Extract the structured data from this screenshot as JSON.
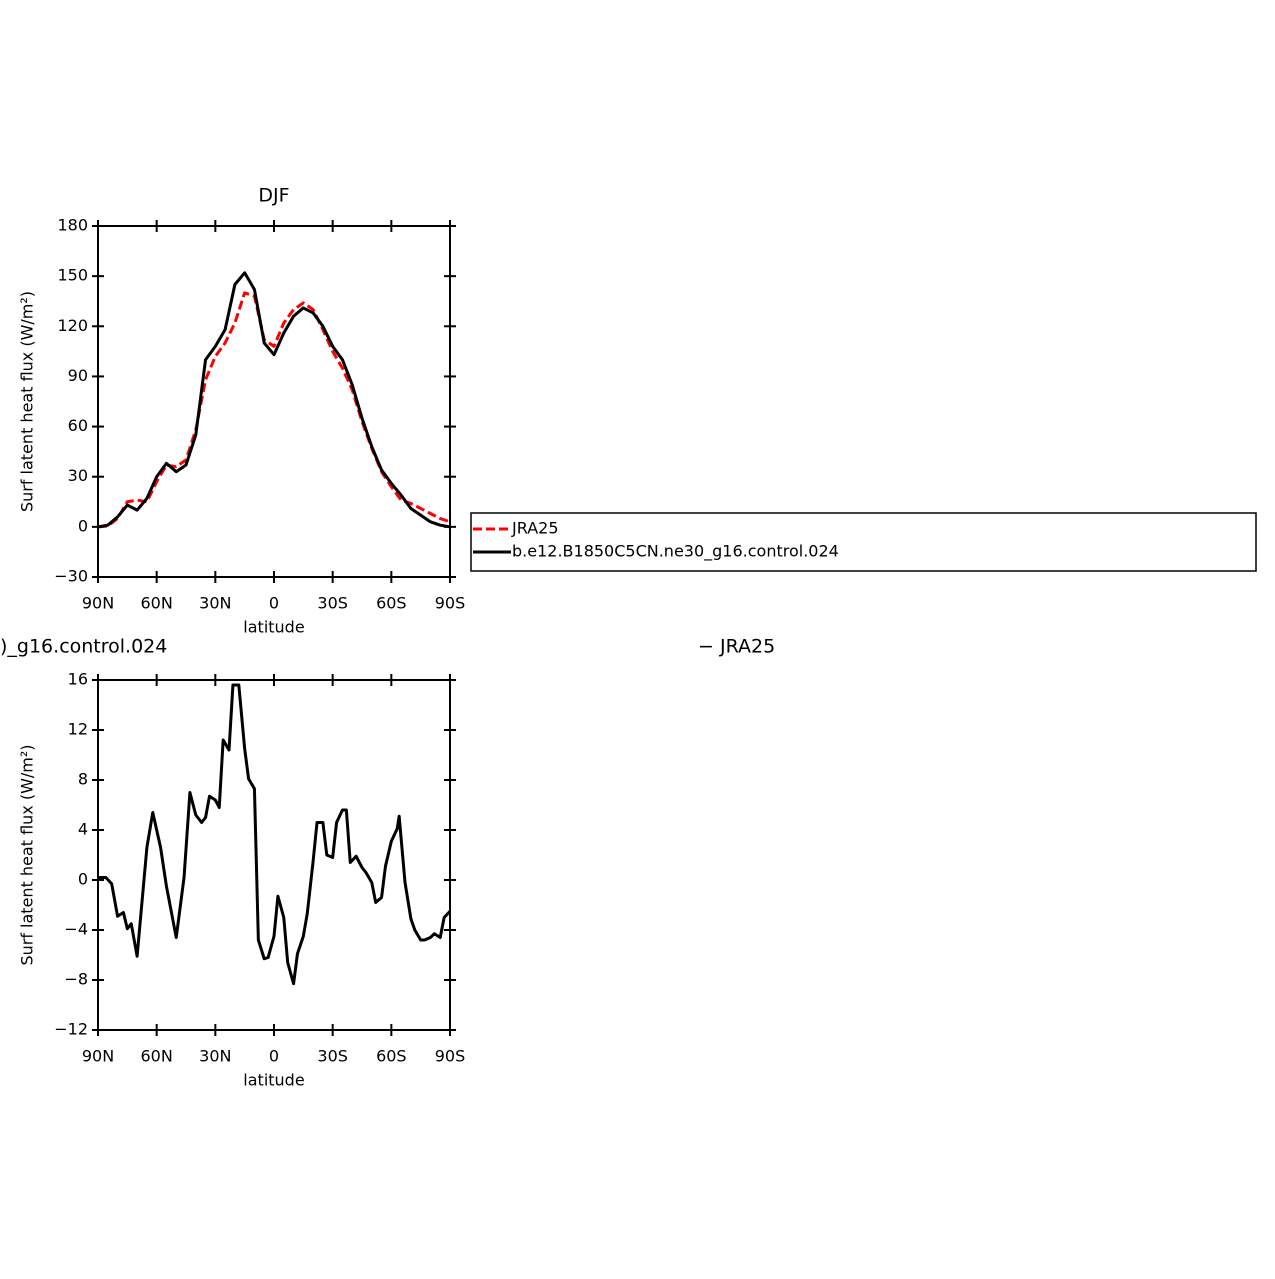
{
  "chart_data": [
    {
      "type": "line",
      "title": "DJF",
      "xlabel": "latitude",
      "ylabel": "Surf latent heat flux (W/m²)",
      "x": [
        90,
        85,
        80,
        75,
        70,
        65,
        60,
        55,
        50,
        45,
        40,
        35,
        30,
        25,
        20,
        15,
        10,
        5,
        0,
        -5,
        -10,
        -15,
        -20,
        -25,
        -30,
        -35,
        -40,
        -45,
        -50,
        -55,
        -60,
        -65,
        -70,
        -75,
        -80,
        -85,
        -90
      ],
      "xlim": [
        90,
        -90
      ],
      "xticks": [
        {
          "value": 90,
          "label": "90N"
        },
        {
          "value": 60,
          "label": "60N"
        },
        {
          "value": 30,
          "label": "30N"
        },
        0,
        {
          "value": -30,
          "label": "30S"
        },
        {
          "value": -60,
          "label": "60S"
        },
        {
          "value": -90,
          "label": "90S"
        }
      ],
      "ylim": [
        -30,
        180
      ],
      "yticks": [
        {
          "value": -30,
          "label": "−30"
        },
        0,
        30,
        60,
        90,
        120,
        150,
        180
      ],
      "series": [
        {
          "name": "JRA25",
          "color": "#ff0000",
          "dash": true,
          "values": [
            0,
            0.5,
            5,
            15,
            16,
            15,
            27,
            37,
            36,
            40,
            58,
            88,
            102,
            110,
            122,
            140,
            138,
            112,
            108,
            122,
            130,
            134,
            130,
            118,
            105,
            95,
            82,
            63,
            47,
            33,
            24,
            16,
            14,
            11,
            8,
            5,
            3
          ]
        },
        {
          "name": "b.e12.B1850C5CN.ne30_g16.control.024",
          "color": "#000000",
          "dash": false,
          "values": [
            0,
            1,
            6,
            13,
            10,
            17,
            30,
            38,
            33,
            37,
            55,
            100,
            108,
            118,
            145,
            152,
            142,
            110,
            103,
            116,
            126,
            131,
            128,
            120,
            108,
            100,
            85,
            65,
            48,
            34,
            26,
            19,
            11,
            7,
            3,
            1,
            0
          ]
        }
      ],
      "legend": "right"
    },
    {
      "type": "line",
      "title_left": ")_g16.control.024",
      "title_right": "− JRA25",
      "xlabel": "latitude",
      "ylabel": "Surf latent heat flux (W/m²)",
      "x": [
        90,
        86,
        83,
        80,
        77,
        75,
        73,
        70,
        65,
        62,
        58,
        55,
        50,
        46,
        43,
        40,
        37,
        35,
        33,
        30,
        28,
        26,
        23,
        21,
        18,
        15,
        13,
        10,
        8,
        5,
        3,
        0,
        -2,
        -5,
        -7,
        -10,
        -12,
        -15,
        -17,
        -20,
        -22,
        -25,
        -27,
        -30,
        -32,
        -35,
        -37,
        -39,
        -42,
        -45,
        -47,
        -50,
        -52,
        -55,
        -57,
        -60,
        -63,
        -64,
        -67,
        -70,
        -72,
        -75,
        -77,
        -80,
        -82,
        -85,
        -87,
        -90
      ],
      "xlim": [
        90,
        -90
      ],
      "xticks": [
        {
          "value": 90,
          "label": "90N"
        },
        {
          "value": 60,
          "label": "60N"
        },
        {
          "value": 30,
          "label": "30N"
        },
        0,
        {
          "value": -30,
          "label": "30S"
        },
        {
          "value": -60,
          "label": "60S"
        },
        {
          "value": -90,
          "label": "90S"
        }
      ],
      "ylim": [
        -12,
        16
      ],
      "yticks": [
        {
          "value": -12,
          "label": "−12"
        },
        {
          "value": -8,
          "label": "−8"
        },
        {
          "value": -4,
          "label": "−4"
        },
        0,
        4,
        8,
        12,
        16
      ],
      "series": [
        {
          "color": "#000000",
          "values": [
            0.2,
            0.2,
            -0.3,
            -2.9,
            -2.6,
            -3.9,
            -3.5,
            -6.1,
            2.6,
            5.4,
            2.6,
            -0.5,
            -4.6,
            0.2,
            7.0,
            5.2,
            4.6,
            5.0,
            6.7,
            6.4,
            5.8,
            11.2,
            10.4,
            15.6,
            15.6,
            10.5,
            8.1,
            7.3,
            -4.8,
            -6.3,
            -6.2,
            -4.5,
            -1.3,
            -3.0,
            -6.6,
            -8.3,
            -5.9,
            -4.5,
            -2.7,
            1.5,
            4.6,
            4.6,
            2.0,
            1.8,
            4.6,
            5.6,
            5.6,
            1.4,
            1.9,
            1.0,
            0.6,
            -0.2,
            -1.8,
            -1.4,
            1.1,
            3.1,
            4.1,
            5.1,
            -0.2,
            -3.1,
            -4.0,
            -4.8,
            -4.8,
            -4.6,
            -4.3,
            -4.6,
            -3.0,
            -2.5
          ]
        }
      ]
    }
  ]
}
